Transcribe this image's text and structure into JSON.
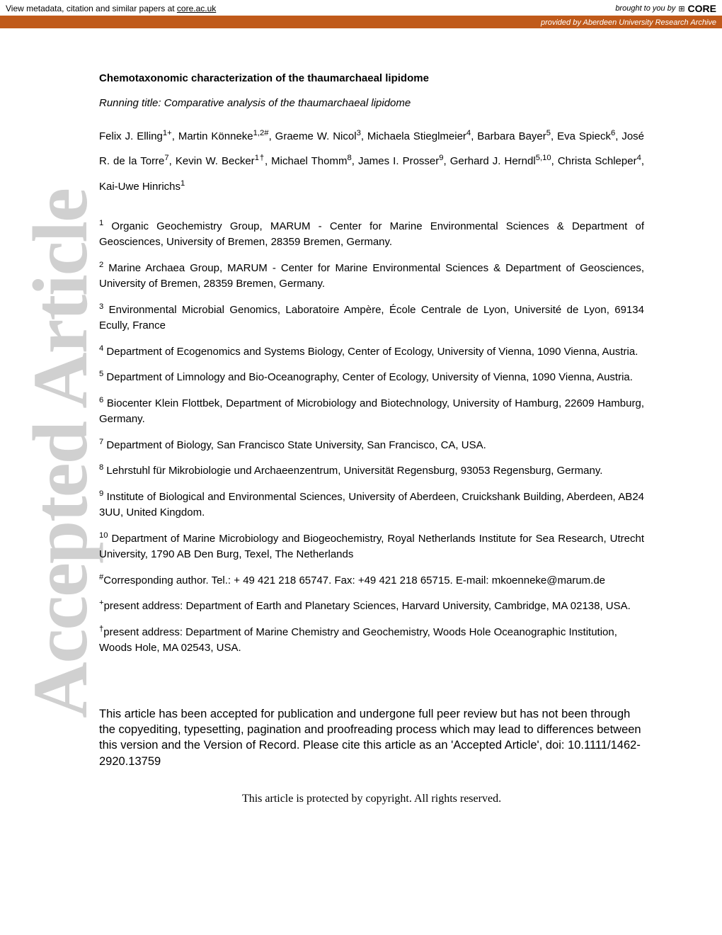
{
  "banner": {
    "left_text_prefix": "View metadata, citation and similar papers at ",
    "left_link": "core.ac.uk",
    "right_prefix": "brought to you by",
    "core_icon": "⊞",
    "core_label": "CORE",
    "sub_prefix": "provided by ",
    "sub_link": "Aberdeen University Research Archive"
  },
  "watermark": "Accepted Article",
  "paper": {
    "title": "Chemotaxonomic characterization of the thaumarchaeal lipidome",
    "running_title": "Running title: Comparative analysis of the thaumarchaeal lipidome"
  },
  "notice": "This article has been accepted for publication and undergone full peer review but has not been through the copyediting, typesetting, pagination and proofreading process which may lead to differences between this version and the Version of Record. Please cite this article as an 'Accepted Article', doi: 10.1111/1462-2920.13759",
  "copyright": "This article is protected by copyright. All rights reserved.",
  "colors": {
    "banner_orange": "#c05a1a",
    "watermark_gray": "#d0d0d0",
    "text": "#000000",
    "background": "#ffffff"
  }
}
